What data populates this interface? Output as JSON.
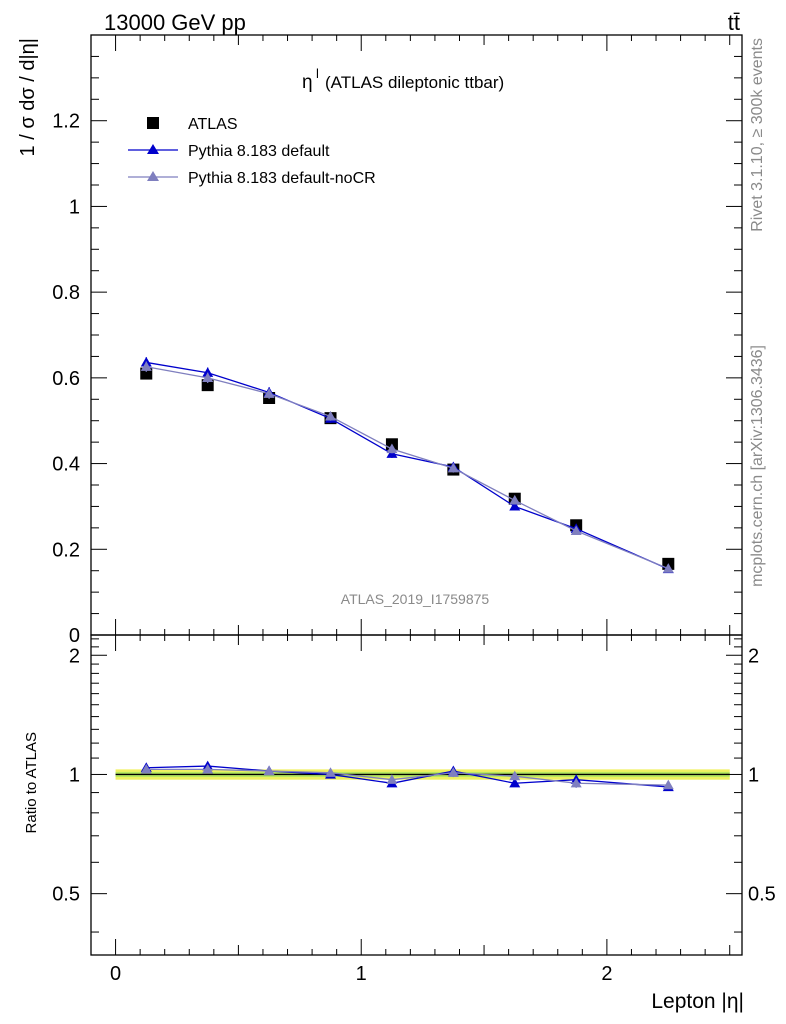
{
  "header": {
    "left": "13000 GeV pp",
    "right": "tt̄"
  },
  "side_labels": {
    "rivet": "Rivet 3.1.10, ≥ 300k events",
    "mcplots": "mcplots.cern.ch [arXiv:1306.3436]"
  },
  "chart_data": {
    "type": "scatter",
    "title": "η",
    "title_superscript": "l",
    "title_suffix": "(ATLAS dileptonic ttbar)",
    "analysis_label": "ATLAS_2019_I1759875",
    "xlabel": "Lepton |η|",
    "ylabel": "1 / σ  dσ / d|η|",
    "ratio_ylabel": "Ratio to ATLAS",
    "xlim": [
      -0.1,
      2.55
    ],
    "ylim": [
      0,
      1.4
    ],
    "ratio_ylim": [
      0.35,
      2.25
    ],
    "x_ticks": [
      0,
      1,
      2
    ],
    "x_tick_labels": [
      "0",
      "1",
      "2"
    ],
    "y_ticks": [
      0,
      0.2,
      0.4,
      0.6,
      0.8,
      1,
      1.2
    ],
    "y_tick_labels": [
      "0",
      "0.2",
      "0.4",
      "0.6",
      "0.8",
      "1",
      "1.2"
    ],
    "ratio_ticks": [
      0.5,
      1,
      2
    ],
    "ratio_tick_labels": [
      "0.5",
      "1",
      "2"
    ],
    "x": [
      0.125,
      0.375,
      0.625,
      0.875,
      1.125,
      1.375,
      1.625,
      1.875,
      2.25
    ],
    "x_bin_edges": [
      0,
      0.25,
      0.5,
      0.75,
      1.0,
      1.25,
      1.5,
      1.75,
      2.0,
      2.5
    ],
    "data": {
      "name": "ATLAS",
      "color": "#000000",
      "values": [
        0.61,
        0.583,
        0.553,
        0.506,
        0.445,
        0.386,
        0.318,
        0.256,
        0.166
      ],
      "band_halfwidth": 0.03,
      "band_color": "#f0f060",
      "band_inner_color": "#b8e860"
    },
    "series": [
      {
        "name": "Pythia 8.183 default",
        "color": "#0000cc",
        "values": [
          0.636,
          0.612,
          0.566,
          0.505,
          0.423,
          0.392,
          0.3,
          0.248,
          0.154
        ],
        "errors": [
          0.012,
          0.012,
          0.012,
          0.01,
          0.01,
          0.01,
          0.008,
          0.008,
          0.006
        ],
        "ratio": [
          1.04,
          1.05,
          1.02,
          1.0,
          0.95,
          1.02,
          0.95,
          0.97,
          0.93
        ],
        "ratio_errors": [
          0.02,
          0.02,
          0.02,
          0.02,
          0.02,
          0.025,
          0.02,
          0.025,
          0.02
        ]
      },
      {
        "name": "Pythia 8.183 default-noCR",
        "color": "#7f7fbf",
        "values": [
          0.626,
          0.6,
          0.563,
          0.51,
          0.434,
          0.389,
          0.314,
          0.243,
          0.155
        ],
        "errors": [
          0.012,
          0.012,
          0.012,
          0.01,
          0.01,
          0.01,
          0.008,
          0.008,
          0.006
        ],
        "ratio": [
          1.03,
          1.03,
          1.02,
          1.01,
          0.97,
          1.01,
          0.99,
          0.95,
          0.94
        ],
        "ratio_errors": [
          0.02,
          0.02,
          0.02,
          0.02,
          0.02,
          0.025,
          0.02,
          0.025,
          0.02
        ]
      }
    ]
  }
}
